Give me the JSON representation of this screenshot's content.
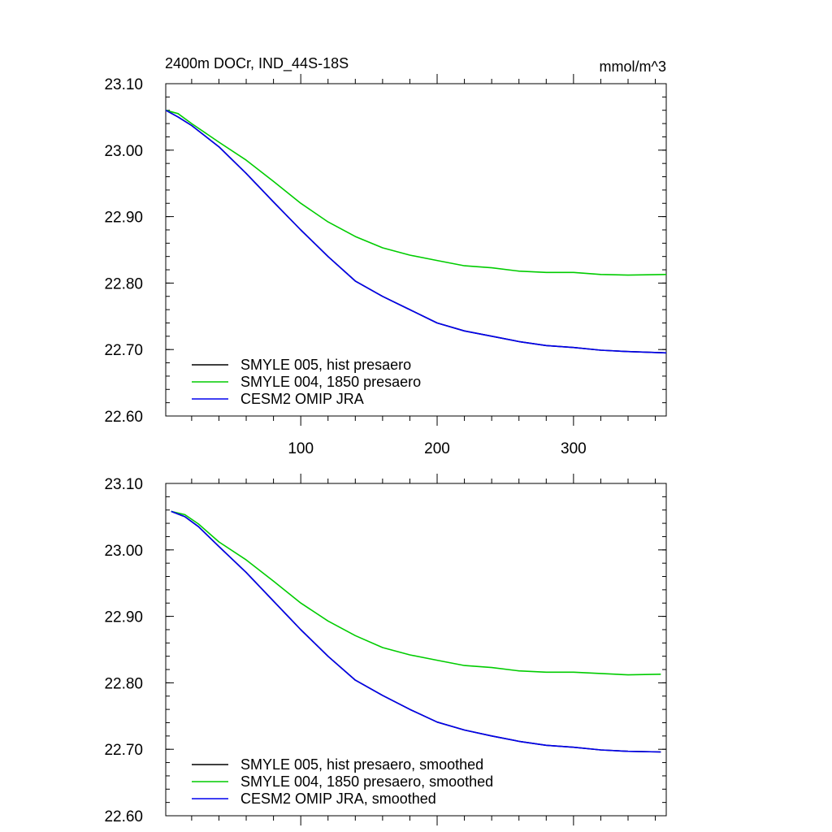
{
  "figure": {
    "title_left": "2400m DOCr, IND_44S-18S",
    "title_right": "mmol/m^3"
  },
  "chart_data": [
    {
      "type": "line",
      "panel": "top",
      "xlim": [
        1,
        368
      ],
      "ylim": [
        22.6,
        23.1
      ],
      "x_ticks": [
        100,
        200,
        300
      ],
      "x_tick_labels": [
        "100",
        "200",
        "300"
      ],
      "y_ticks": [
        22.6,
        22.7,
        22.8,
        22.9,
        23.0,
        23.1
      ],
      "y_tick_labels": [
        "22.60",
        "22.70",
        "22.80",
        "22.90",
        "23.00",
        "23.10"
      ],
      "legend_position": "bottom-left",
      "series": [
        {
          "name": "SMYLE 005, hist presaero",
          "color": "#000000",
          "x": [
            1,
            10,
            20,
            40,
            60,
            80,
            100,
            120,
            140,
            160,
            180,
            200,
            220,
            240,
            260,
            280,
            300,
            320,
            340,
            368
          ],
          "values": [
            23.06,
            23.05,
            23.037,
            23.005,
            22.965,
            22.922,
            22.88,
            22.84,
            22.803,
            22.78,
            22.76,
            22.74,
            22.728,
            22.72,
            22.712,
            22.706,
            22.703,
            22.699,
            22.697,
            22.695
          ]
        },
        {
          "name": "SMYLE 004, 1850 presaero",
          "color": "#00cc00",
          "x": [
            1,
            10,
            20,
            40,
            60,
            80,
            100,
            120,
            140,
            160,
            180,
            200,
            220,
            240,
            260,
            280,
            300,
            320,
            340,
            368
          ],
          "values": [
            23.06,
            23.055,
            23.04,
            23.012,
            22.985,
            22.953,
            22.92,
            22.892,
            22.87,
            22.853,
            22.842,
            22.834,
            22.826,
            22.823,
            22.818,
            22.816,
            22.816,
            22.813,
            22.812,
            22.813
          ]
        },
        {
          "name": "CESM2 OMIP JRA",
          "color": "#0000ee",
          "x": [
            1,
            10,
            20,
            40,
            60,
            80,
            100,
            120,
            140,
            160,
            180,
            200,
            220,
            240,
            260,
            280,
            300,
            320,
            340,
            368
          ],
          "values": [
            23.06,
            23.05,
            23.037,
            23.005,
            22.965,
            22.922,
            22.88,
            22.84,
            22.803,
            22.78,
            22.76,
            22.74,
            22.728,
            22.72,
            22.712,
            22.706,
            22.703,
            22.699,
            22.697,
            22.695
          ]
        }
      ]
    },
    {
      "type": "line",
      "panel": "bottom",
      "xlim": [
        1,
        368
      ],
      "ylim": [
        22.6,
        23.1
      ],
      "x_ticks": [
        100,
        200,
        300
      ],
      "x_tick_labels": [],
      "y_ticks": [
        22.6,
        22.7,
        22.8,
        22.9,
        23.0,
        23.1
      ],
      "y_tick_labels": [
        "22.60",
        "22.70",
        "22.80",
        "22.90",
        "23.00",
        "23.10"
      ],
      "legend_position": "bottom-left",
      "series": [
        {
          "name": "SMYLE 005, hist presaero, smoothed",
          "color": "#000000",
          "x": [
            5,
            15,
            25,
            40,
            60,
            80,
            100,
            120,
            140,
            160,
            180,
            200,
            220,
            240,
            260,
            280,
            300,
            320,
            340,
            364
          ],
          "values": [
            23.058,
            23.05,
            23.035,
            23.005,
            22.966,
            22.923,
            22.88,
            22.84,
            22.804,
            22.781,
            22.76,
            22.741,
            22.729,
            22.72,
            22.712,
            22.706,
            22.703,
            22.699,
            22.697,
            22.696
          ]
        },
        {
          "name": "SMYLE 004, 1850 presaero, smoothed",
          "color": "#00cc00",
          "x": [
            5,
            15,
            25,
            40,
            60,
            80,
            100,
            120,
            140,
            160,
            180,
            200,
            220,
            240,
            260,
            280,
            300,
            320,
            340,
            364
          ],
          "values": [
            23.058,
            23.053,
            23.039,
            23.012,
            22.985,
            22.953,
            22.92,
            22.893,
            22.871,
            22.853,
            22.842,
            22.834,
            22.826,
            22.823,
            22.818,
            22.816,
            22.816,
            22.814,
            22.812,
            22.813
          ]
        },
        {
          "name": "CESM2 OMIP JRA, smoothed",
          "color": "#0000ee",
          "x": [
            5,
            15,
            25,
            40,
            60,
            80,
            100,
            120,
            140,
            160,
            180,
            200,
            220,
            240,
            260,
            280,
            300,
            320,
            340,
            364
          ],
          "values": [
            23.058,
            23.05,
            23.035,
            23.005,
            22.966,
            22.923,
            22.88,
            22.84,
            22.804,
            22.781,
            22.76,
            22.741,
            22.729,
            22.72,
            22.712,
            22.706,
            22.703,
            22.699,
            22.697,
            22.696
          ]
        }
      ]
    }
  ]
}
